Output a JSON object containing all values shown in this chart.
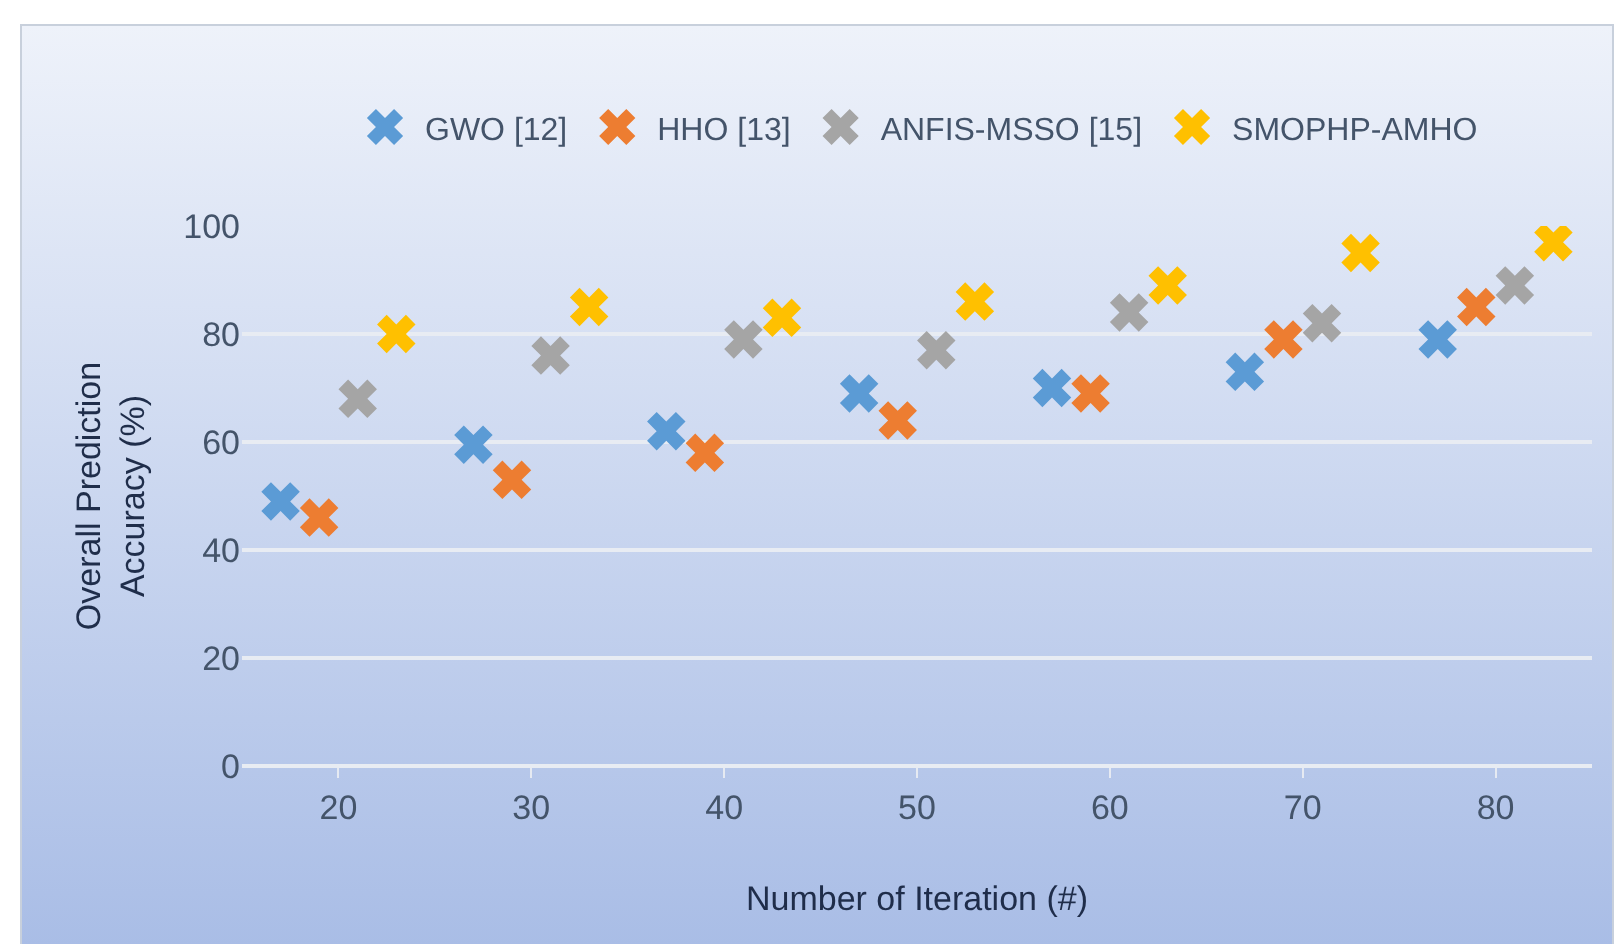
{
  "chart_data": {
    "type": "scatter",
    "xlabel": "Number of Iteration (#)",
    "ylabel": "Overall Prediction Accuracy (%)",
    "categories": [
      "20",
      "30",
      "40",
      "50",
      "60",
      "70",
      "80"
    ],
    "series": [
      {
        "name": "GWO [12]",
        "color": "#5b9bd5",
        "values": [
          49,
          59.5,
          62,
          69,
          70,
          73,
          79
        ]
      },
      {
        "name": "HHO [13]",
        "color": "#ed7d31",
        "values": [
          46,
          53,
          58,
          64,
          69,
          79,
          85
        ]
      },
      {
        "name": "ANFIS-MSSO [15]",
        "color": "#a5a5a5",
        "values": [
          68,
          76,
          79,
          77,
          84,
          82,
          89
        ]
      },
      {
        "name": "SMOPHP-AMHO",
        "color": "#ffc000",
        "values": [
          80,
          85,
          83,
          86,
          89,
          95,
          97
        ]
      }
    ],
    "ylim": [
      0,
      100
    ],
    "yticks": [
      0,
      20,
      40,
      60,
      80,
      100
    ],
    "grid": "y",
    "legend": "top",
    "marker": "cross"
  }
}
